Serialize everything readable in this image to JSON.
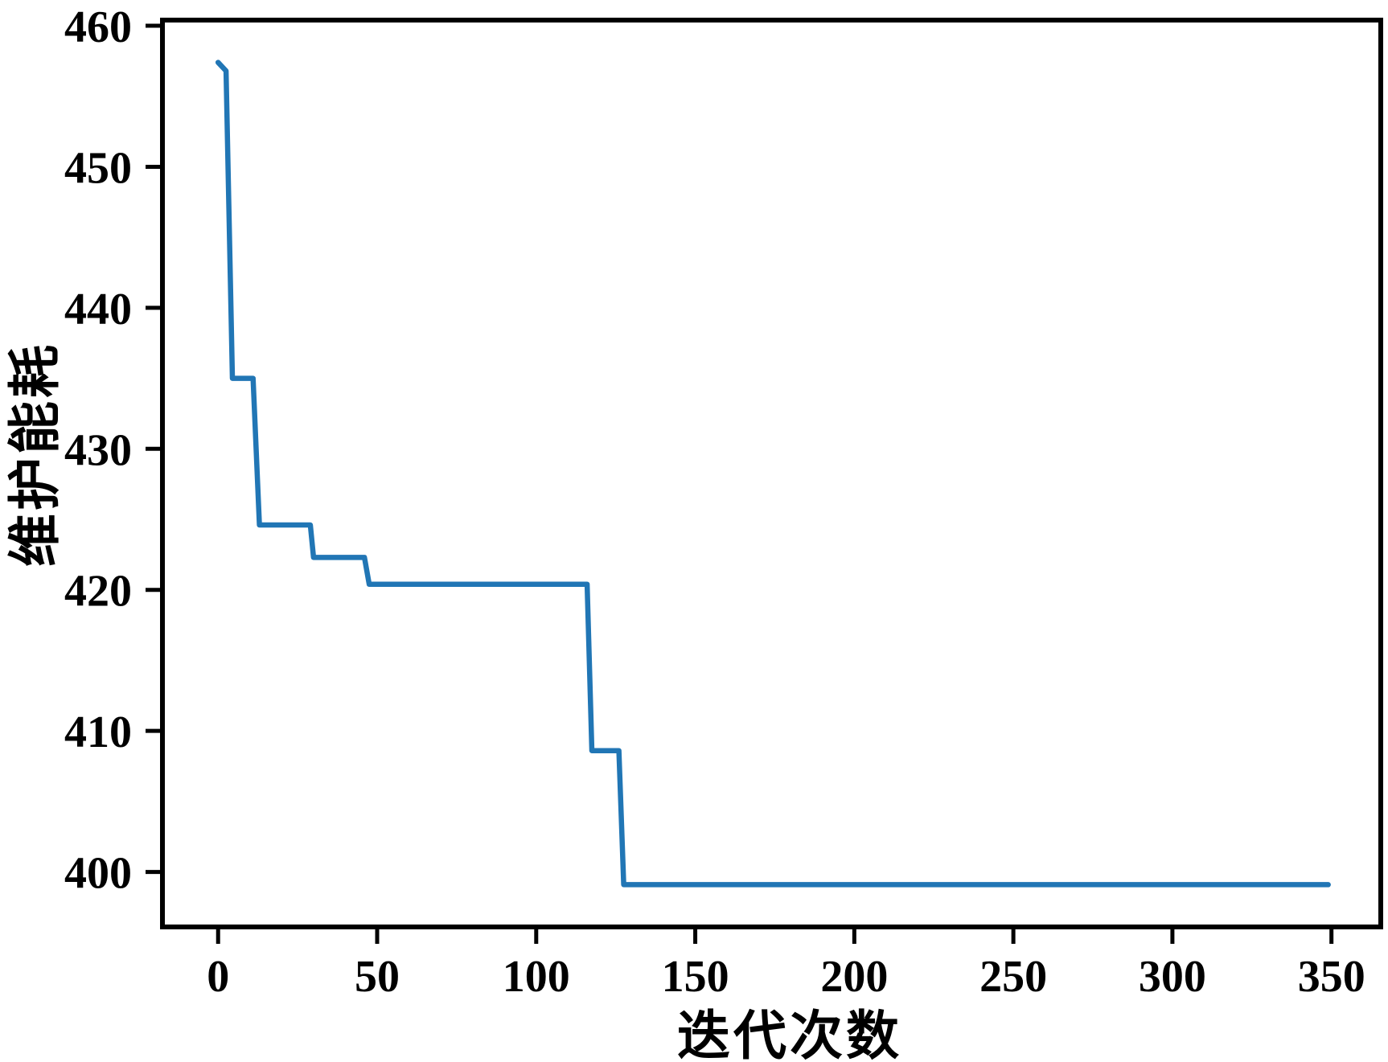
{
  "figure": {
    "background_color": "#ffffff",
    "axis_color": "#000000"
  },
  "chart_data": {
    "type": "line",
    "title": "",
    "xlabel": "迭代次数",
    "ylabel": "维护能耗",
    "xlim": [
      -17.5,
      365.5
    ],
    "ylim": [
      396.1,
      460.4
    ],
    "xticks": [
      0,
      50,
      100,
      150,
      200,
      250,
      300,
      350
    ],
    "yticks": [
      400,
      410,
      420,
      430,
      440,
      450,
      460
    ],
    "grid": false,
    "legend_position": "none",
    "line_color": "#2176b5",
    "line_width": 6.5,
    "series": [
      {
        "points": [
          [
            0,
            457.4
          ],
          [
            2.5,
            456.8
          ],
          [
            4.5,
            435.0
          ],
          [
            11,
            435.0
          ],
          [
            13,
            424.6
          ],
          [
            29,
            424.6
          ],
          [
            30,
            422.3
          ],
          [
            46,
            422.3
          ],
          [
            47.5,
            420.4
          ],
          [
            116,
            420.4
          ],
          [
            117.5,
            408.6
          ],
          [
            126,
            408.6
          ],
          [
            127.5,
            399.1
          ],
          [
            349,
            399.1
          ]
        ]
      }
    ]
  }
}
